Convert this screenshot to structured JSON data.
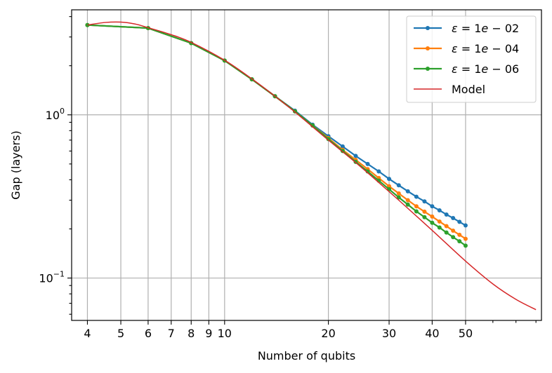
{
  "chart_data": {
    "type": "line",
    "title": "",
    "xlabel": "Number of qubits",
    "ylabel": "Gap (layers)",
    "xscale": "log",
    "yscale": "log",
    "xlim": [
      3.6,
      83
    ],
    "ylim": [
      0.055,
      4.4
    ],
    "grid": true,
    "legend_position": "top-right",
    "x_major_ticks": [
      {
        "value": 4,
        "label": "4"
      },
      {
        "value": 5,
        "label": "5"
      },
      {
        "value": 6,
        "label": "6"
      },
      {
        "value": 7,
        "label": "7"
      },
      {
        "value": 8,
        "label": "8"
      },
      {
        "value": 9,
        "label": "9"
      },
      {
        "value": 10,
        "label": "10"
      },
      {
        "value": 20,
        "label": "20"
      },
      {
        "value": 30,
        "label": "30"
      },
      {
        "value": 40,
        "label": "40"
      },
      {
        "value": 50,
        "label": "50"
      }
    ],
    "x_minor_ticks": [
      60,
      70,
      80
    ],
    "y_major_ticks": [
      {
        "value": 0.1,
        "base": "10",
        "exp": "−1"
      },
      {
        "value": 1,
        "base": "10",
        "exp": "0"
      }
    ],
    "y_minor_ticks": [
      0.06,
      0.07,
      0.08,
      0.09,
      0.2,
      0.3,
      0.4,
      0.5,
      0.6,
      0.7,
      0.8,
      0.9,
      2,
      3,
      4
    ],
    "series": [
      {
        "name": "ε = 1e − 02",
        "label_parts": {
          "eps": "ε",
          "eq": " = 1",
          "e": "e",
          "rest": " − 02"
        },
        "kind": "line-marker",
        "color": "#1f77b4",
        "x": [
          4,
          6,
          8,
          10,
          12,
          14,
          16,
          18,
          20,
          22,
          24,
          26,
          28,
          30,
          32,
          34,
          36,
          38,
          40,
          42,
          44,
          46,
          48,
          50
        ],
        "y": [
          3.55,
          3.4,
          2.75,
          2.15,
          1.65,
          1.3,
          1.06,
          0.87,
          0.74,
          0.64,
          0.56,
          0.5,
          0.45,
          0.405,
          0.37,
          0.34,
          0.315,
          0.295,
          0.275,
          0.26,
          0.245,
          0.233,
          0.221,
          0.21
        ]
      },
      {
        "name": "ε = 1e − 04",
        "label_parts": {
          "eps": "ε",
          "eq": " = 1",
          "e": "e",
          "rest": " − 04"
        },
        "kind": "line-marker",
        "color": "#ff7f0e",
        "x": [
          4,
          6,
          8,
          10,
          12,
          14,
          16,
          18,
          20,
          22,
          24,
          26,
          28,
          30,
          32,
          34,
          36,
          38,
          40,
          42,
          44,
          46,
          48,
          50
        ],
        "y": [
          3.55,
          3.4,
          2.75,
          2.15,
          1.65,
          1.3,
          1.05,
          0.86,
          0.72,
          0.61,
          0.53,
          0.465,
          0.41,
          0.365,
          0.33,
          0.3,
          0.275,
          0.255,
          0.238,
          0.222,
          0.208,
          0.195,
          0.184,
          0.174
        ]
      },
      {
        "name": "ε = 1e − 06",
        "label_parts": {
          "eps": "ε",
          "eq": " = 1",
          "e": "e",
          "rest": " − 06"
        },
        "kind": "line-marker",
        "color": "#2ca02c",
        "x": [
          4,
          6,
          8,
          10,
          12,
          14,
          16,
          18,
          20,
          22,
          24,
          26,
          28,
          30,
          32,
          34,
          36,
          38,
          40,
          42,
          44,
          46,
          48,
          50
        ],
        "y": [
          3.55,
          3.4,
          2.75,
          2.15,
          1.65,
          1.3,
          1.05,
          0.86,
          0.71,
          0.6,
          0.515,
          0.45,
          0.395,
          0.35,
          0.312,
          0.282,
          0.256,
          0.236,
          0.218,
          0.204,
          0.19,
          0.178,
          0.168,
          0.158
        ]
      },
      {
        "name": "Model",
        "kind": "line",
        "color": "#d62728",
        "x": [
          4,
          4.5,
          5,
          5.5,
          6,
          7,
          8,
          10,
          12,
          14,
          16,
          20,
          24,
          28,
          32,
          40,
          50,
          60,
          70,
          80
        ],
        "y": [
          3.55,
          3.68,
          3.7,
          3.6,
          3.42,
          3.1,
          2.78,
          2.16,
          1.66,
          1.3,
          1.04,
          0.7,
          0.51,
          0.385,
          0.3,
          0.196,
          0.127,
          0.092,
          0.074,
          0.064
        ]
      }
    ]
  }
}
